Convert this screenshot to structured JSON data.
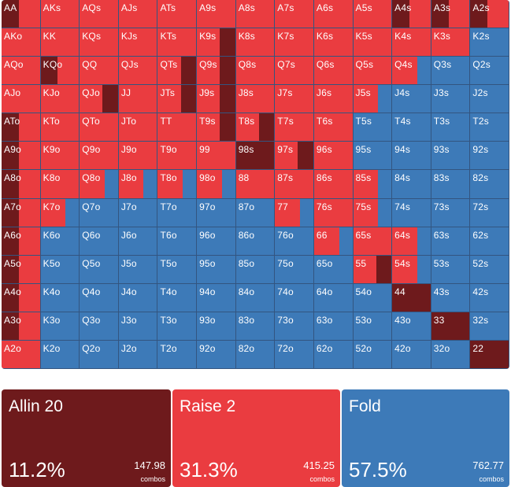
{
  "colors": {
    "allin": "#6e1a1c",
    "raise": "#ea3c40",
    "fold": "#3d7ab8"
  },
  "matrix": {
    "rows": [
      [
        [
          "AA",
          "AR"
        ],
        [
          "AKs",
          "R"
        ],
        [
          "AQs",
          "R"
        ],
        [
          "AJs",
          "R"
        ],
        [
          "ATs",
          "R"
        ],
        [
          "A9s",
          "R"
        ],
        [
          "A8s",
          "R"
        ],
        [
          "A7s",
          "R"
        ],
        [
          "A6s",
          "R"
        ],
        [
          "A5s",
          "R"
        ],
        [
          "A4s",
          "AR"
        ],
        [
          "A3s",
          "AR"
        ],
        [
          "A2s",
          "AR"
        ]
      ],
      [
        [
          "AKo",
          "R"
        ],
        [
          "KK",
          "R"
        ],
        [
          "KQs",
          "R"
        ],
        [
          "KJs",
          "R"
        ],
        [
          "KTs",
          "R"
        ],
        [
          "K9s",
          "RA"
        ],
        [
          "K8s",
          "R"
        ],
        [
          "K7s",
          "R"
        ],
        [
          "K6s",
          "R"
        ],
        [
          "K5s",
          "R"
        ],
        [
          "K4s",
          "R"
        ],
        [
          "K3s",
          "R"
        ],
        [
          "K2s",
          "F"
        ]
      ],
      [
        [
          "AQo",
          "R"
        ],
        [
          "KQo",
          "AR"
        ],
        [
          "QQ",
          "R"
        ],
        [
          "QJs",
          "R"
        ],
        [
          "QTs",
          "RA"
        ],
        [
          "Q9s",
          "RA"
        ],
        [
          "Q8s",
          "R"
        ],
        [
          "Q7s",
          "R"
        ],
        [
          "Q6s",
          "R"
        ],
        [
          "Q5s",
          "R"
        ],
        [
          "Q4s",
          "RF"
        ],
        [
          "Q3s",
          "F"
        ],
        [
          "Q2s",
          "F"
        ]
      ],
      [
        [
          "AJo",
          "R"
        ],
        [
          "KJo",
          "R"
        ],
        [
          "QJo",
          "RA"
        ],
        [
          "JJ",
          "R"
        ],
        [
          "JTs",
          "RA"
        ],
        [
          "J9s",
          "RA"
        ],
        [
          "J8s",
          "R"
        ],
        [
          "J7s",
          "R"
        ],
        [
          "J6s",
          "R"
        ],
        [
          "J5s",
          "RF"
        ],
        [
          "J4s",
          "F"
        ],
        [
          "J3s",
          "F"
        ],
        [
          "J2s",
          "F"
        ]
      ],
      [
        [
          "ATo",
          "AR"
        ],
        [
          "KTo",
          "R"
        ],
        [
          "QTo",
          "R"
        ],
        [
          "JTo",
          "R"
        ],
        [
          "TT",
          "R"
        ],
        [
          "T9s",
          "RA"
        ],
        [
          "T8s",
          "RA"
        ],
        [
          "T7s",
          "R"
        ],
        [
          "T6s",
          "R"
        ],
        [
          "T5s",
          "F"
        ],
        [
          "T4s",
          "F"
        ],
        [
          "T3s",
          "F"
        ],
        [
          "T2s",
          "F"
        ]
      ],
      [
        [
          "A9o",
          "AR"
        ],
        [
          "K9o",
          "R"
        ],
        [
          "Q9o",
          "R"
        ],
        [
          "J9o",
          "R"
        ],
        [
          "T9o",
          "R"
        ],
        [
          "99",
          "R"
        ],
        [
          "98s",
          "A"
        ],
        [
          "97s",
          "RA"
        ],
        [
          "96s",
          "R"
        ],
        [
          "95s",
          "F"
        ],
        [
          "94s",
          "F"
        ],
        [
          "93s",
          "F"
        ],
        [
          "92s",
          "F"
        ]
      ],
      [
        [
          "A8o",
          "AR"
        ],
        [
          "K8o",
          "R"
        ],
        [
          "Q8o",
          "RF"
        ],
        [
          "J8o",
          "RF"
        ],
        [
          "T8o",
          "RF"
        ],
        [
          "98o",
          "RF"
        ],
        [
          "88",
          "R"
        ],
        [
          "87s",
          "R"
        ],
        [
          "86s",
          "R"
        ],
        [
          "85s",
          "RF"
        ],
        [
          "84s",
          "F"
        ],
        [
          "83s",
          "F"
        ],
        [
          "82s",
          "F"
        ]
      ],
      [
        [
          "A7o",
          "AR"
        ],
        [
          "K7o",
          "RF"
        ],
        [
          "Q7o",
          "F"
        ],
        [
          "J7o",
          "F"
        ],
        [
          "T7o",
          "F"
        ],
        [
          "97o",
          "F"
        ],
        [
          "87o",
          "F"
        ],
        [
          "77",
          "RF"
        ],
        [
          "76s",
          "R"
        ],
        [
          "75s",
          "RF"
        ],
        [
          "74s",
          "F"
        ],
        [
          "73s",
          "F"
        ],
        [
          "72s",
          "F"
        ]
      ],
      [
        [
          "A6o",
          "AR"
        ],
        [
          "K6o",
          "F"
        ],
        [
          "Q6o",
          "F"
        ],
        [
          "J6o",
          "F"
        ],
        [
          "T6o",
          "F"
        ],
        [
          "96o",
          "F"
        ],
        [
          "86o",
          "F"
        ],
        [
          "76o",
          "F"
        ],
        [
          "66",
          "RF"
        ],
        [
          "65s",
          "R"
        ],
        [
          "64s",
          "RF"
        ],
        [
          "63s",
          "F"
        ],
        [
          "62s",
          "F"
        ]
      ],
      [
        [
          "A5o",
          "AR"
        ],
        [
          "K5o",
          "F"
        ],
        [
          "Q5o",
          "F"
        ],
        [
          "J5o",
          "F"
        ],
        [
          "T5o",
          "F"
        ],
        [
          "95o",
          "F"
        ],
        [
          "85o",
          "F"
        ],
        [
          "75o",
          "F"
        ],
        [
          "65o",
          "F"
        ],
        [
          "55",
          "RA"
        ],
        [
          "54s",
          "RF"
        ],
        [
          "53s",
          "F"
        ],
        [
          "52s",
          "F"
        ]
      ],
      [
        [
          "A4o",
          "AR"
        ],
        [
          "K4o",
          "F"
        ],
        [
          "Q4o",
          "F"
        ],
        [
          "J4o",
          "F"
        ],
        [
          "T4o",
          "F"
        ],
        [
          "94o",
          "F"
        ],
        [
          "84o",
          "F"
        ],
        [
          "74o",
          "F"
        ],
        [
          "64o",
          "F"
        ],
        [
          "54o",
          "F"
        ],
        [
          "44",
          "A"
        ],
        [
          "43s",
          "F"
        ],
        [
          "42s",
          "F"
        ]
      ],
      [
        [
          "A3o",
          "AR"
        ],
        [
          "K3o",
          "F"
        ],
        [
          "Q3o",
          "F"
        ],
        [
          "J3o",
          "F"
        ],
        [
          "T3o",
          "F"
        ],
        [
          "93o",
          "F"
        ],
        [
          "83o",
          "F"
        ],
        [
          "73o",
          "F"
        ],
        [
          "63o",
          "F"
        ],
        [
          "53o",
          "F"
        ],
        [
          "43o",
          "F"
        ],
        [
          "33",
          "A"
        ],
        [
          "32s",
          "F"
        ]
      ],
      [
        [
          "A2o",
          "R"
        ],
        [
          "K2o",
          "F"
        ],
        [
          "Q2o",
          "F"
        ],
        [
          "J2o",
          "F"
        ],
        [
          "T2o",
          "F"
        ],
        [
          "92o",
          "F"
        ],
        [
          "82o",
          "F"
        ],
        [
          "72o",
          "F"
        ],
        [
          "62o",
          "F"
        ],
        [
          "52o",
          "F"
        ],
        [
          "42o",
          "F"
        ],
        [
          "32o",
          "F"
        ],
        [
          "22",
          "A"
        ]
      ]
    ]
  },
  "summary": [
    {
      "key": "allin",
      "name": "Allin 20",
      "percent": "11.2%",
      "combos": "147.98",
      "unit": "combos"
    },
    {
      "key": "raise",
      "name": "Raise 2",
      "percent": "31.3%",
      "combos": "415.25",
      "unit": "combos"
    },
    {
      "key": "fold",
      "name": "Fold",
      "percent": "57.5%",
      "combos": "762.77",
      "unit": "combos"
    }
  ]
}
